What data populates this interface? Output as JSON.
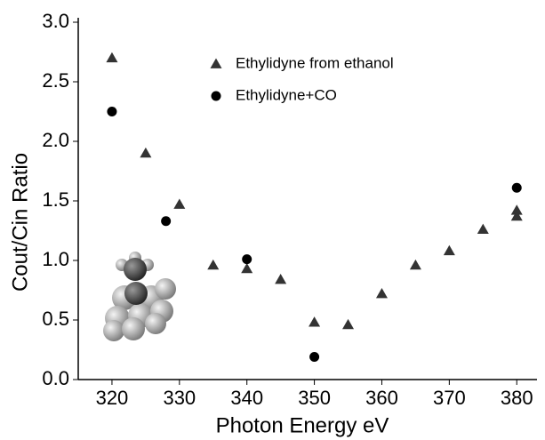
{
  "chart_data": {
    "type": "scatter",
    "xlabel": "Photon Energy eV",
    "ylabel": "Cout/Cin   Ratio",
    "xlim": [
      315,
      383
    ],
    "ylim": [
      0,
      3
    ],
    "xticks": [
      320,
      330,
      340,
      350,
      360,
      370,
      380
    ],
    "yticks": [
      {
        "value": 0,
        "label": "0.0"
      },
      0.5,
      {
        "value": 1,
        "label": "1.0"
      },
      1.5,
      {
        "value": 2,
        "label": "2.0"
      },
      2.5,
      {
        "value": 3,
        "label": "3.0"
      }
    ],
    "legend": "top",
    "series": [
      {
        "name": "Ethylidyne from ethanol",
        "color": "#333333",
        "marker": "triangle",
        "x": [
          320,
          325,
          330,
          335,
          340,
          345,
          350,
          355,
          360,
          365,
          370,
          375,
          380,
          380
        ],
        "values": [
          2.7,
          1.9,
          1.47,
          0.96,
          0.93,
          0.84,
          0.48,
          0.46,
          0.72,
          0.96,
          1.08,
          1.26,
          1.42,
          1.37
        ]
      },
      {
        "name": "Ethylidyne+CO",
        "color": "#000000",
        "marker": "circle",
        "x": [
          320,
          328,
          340,
          350,
          380
        ],
        "values": [
          2.25,
          1.33,
          1.01,
          0.19,
          1.61
        ]
      }
    ]
  }
}
